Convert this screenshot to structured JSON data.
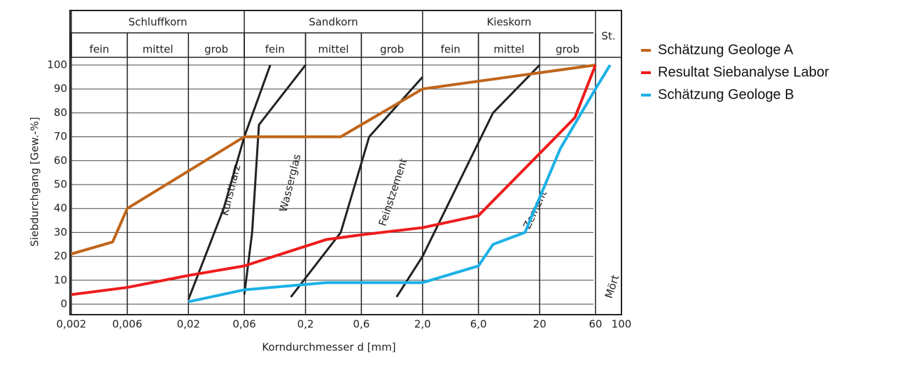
{
  "chart_data": {
    "type": "line",
    "xlabel": "Korndurchmesser d [mm]",
    "ylabel": "Siebdurchgang [Gew.-%]",
    "xscale": "log",
    "xlim": [
      0.002,
      100
    ],
    "ylim": [
      0,
      100
    ],
    "xticks": [
      {
        "value": 0.002,
        "label": "0,002"
      },
      {
        "value": 0.006,
        "label": "0,006"
      },
      {
        "value": 0.02,
        "label": "0,02"
      },
      {
        "value": 0.06,
        "label": "0,06"
      },
      {
        "value": 0.2,
        "label": "0,2"
      },
      {
        "value": 0.6,
        "label": "0,6"
      },
      {
        "value": 2,
        "label": "2,0"
      },
      {
        "value": 6,
        "label": "6,0"
      },
      20,
      60,
      100
    ],
    "yticks": [
      0,
      10,
      20,
      30,
      40,
      50,
      60,
      70,
      80,
      90,
      100
    ],
    "grid": true,
    "legend": "right",
    "soil_classes": [
      {
        "label": "Schluffkorn",
        "from": 0.002,
        "to": 0.06
      },
      {
        "label": "Sandkorn",
        "from": 0.06,
        "to": 2
      },
      {
        "label": "Kieskorn",
        "from": 2,
        "to": 60
      },
      {
        "label": "St.",
        "from": 60,
        "to": 100
      }
    ],
    "sub_classes": [
      {
        "label": "fein",
        "from": 0.002,
        "to": 0.006
      },
      {
        "label": "mittel",
        "from": 0.006,
        "to": 0.02
      },
      {
        "label": "grob",
        "from": 0.02,
        "to": 0.06
      },
      {
        "label": "fein",
        "from": 0.06,
        "to": 0.2
      },
      {
        "label": "mittel",
        "from": 0.2,
        "to": 0.6
      },
      {
        "label": "grob",
        "from": 0.6,
        "to": 2
      },
      {
        "label": "fein",
        "from": 2,
        "to": 6
      },
      {
        "label": "mittel",
        "from": 6,
        "to": 20
      },
      {
        "label": "grob",
        "from": 20,
        "to": 60
      }
    ],
    "zone_labels": [
      "Kunstharz",
      "Wasserglas",
      "Feinstzement",
      "Zement",
      "Mört"
    ],
    "zone_curves": [
      {
        "x": [
          0.02,
          0.04,
          0.06,
          0.1
        ],
        "values": [
          2,
          40,
          70,
          100
        ]
      },
      {
        "x": [
          0.06,
          0.07,
          0.08,
          0.2
        ],
        "values": [
          4,
          30,
          75,
          100
        ]
      },
      {
        "x": [
          0.15,
          0.4,
          0.7,
          2
        ],
        "values": [
          3,
          30,
          70,
          95
        ]
      },
      {
        "x": [
          1.2,
          2,
          4,
          8,
          20
        ],
        "values": [
          3,
          20,
          50,
          80,
          100
        ]
      }
    ],
    "series": [
      {
        "name": "Schätzung Geologe A",
        "color": "#c0651a",
        "x": [
          0.002,
          0.0045,
          0.006,
          0.06,
          0.4,
          2,
          60
        ],
        "values": [
          21,
          26,
          40,
          70,
          70,
          90,
          100
        ]
      },
      {
        "name": "Resultat Siebanalyse Labor",
        "color": "#ee1c1c",
        "x": [
          0.002,
          0.006,
          0.02,
          0.06,
          0.3,
          0.6,
          2,
          6,
          20,
          40,
          60
        ],
        "values": [
          4,
          7,
          12,
          16,
          27,
          29,
          32,
          37,
          63,
          78,
          100
        ]
      },
      {
        "name": "Schätzung Geologe B",
        "color": "#1bb1e6",
        "x": [
          0.02,
          0.06,
          0.3,
          2,
          6,
          8,
          15,
          30,
          60,
          80
        ],
        "values": [
          1,
          6,
          9,
          9,
          16,
          25,
          30,
          65,
          90,
          100
        ]
      }
    ]
  }
}
